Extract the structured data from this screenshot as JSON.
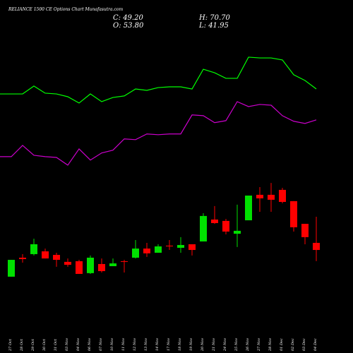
{
  "chart_data": {
    "type": "candlestick",
    "title": "RELIANCE 1500 CE Options Chart Munafasutra.com",
    "ohlc_labels": {
      "close": "C: 49.20",
      "high": "H: 70.70",
      "open": "O: 53.80",
      "low": "L: 41.95"
    },
    "categories": [
      "27 Oct",
      "28 Oct",
      "29 Oct",
      "30 Oct",
      "31 Oct",
      "03 Nov",
      "04 Nov",
      "06 Nov",
      "07 Nov",
      "10 Nov",
      "11 Nov",
      "12 Nov",
      "13 Nov",
      "14 Nov",
      "17 Nov",
      "18 Nov",
      "19 Nov",
      "20 Nov",
      "21 Nov",
      "24 Nov",
      "25 Nov",
      "26 Nov",
      "27 Nov",
      "28 Nov",
      "01 Dec",
      "02 Dec",
      "03 Dec",
      "04 Dec"
    ],
    "open": [
      31.9,
      44.2,
      46.5,
      48.3,
      46.0,
      41.5,
      41.9,
      34.2,
      40.1,
      38.7,
      41.9,
      44.2,
      50.1,
      47.4,
      52.0,
      50.6,
      52.9,
      54.7,
      68.9,
      68.0,
      59.7,
      68.4,
      84.9,
      84.9,
      88.1,
      80.8,
      66.1,
      53.8
    ],
    "high": [
      42.8,
      46.5,
      56.5,
      50.1,
      47.4,
      43.7,
      42.8,
      45.6,
      43.7,
      43.7,
      42.8,
      55.6,
      53.8,
      52.9,
      55.6,
      57.5,
      52.9,
      73.0,
      77.6,
      69.3,
      78.5,
      84.4,
      89.9,
      92.6,
      89.4,
      80.8,
      66.1,
      70.7
    ],
    "low": [
      31.9,
      41.0,
      45.6,
      43.7,
      38.3,
      38.3,
      33.7,
      33.7,
      34.6,
      38.7,
      34.6,
      43.7,
      44.7,
      47.4,
      49.2,
      47.4,
      45.6,
      54.7,
      66.1,
      59.3,
      51.1,
      68.4,
      73.9,
      73.9,
      79.4,
      61.1,
      52.9,
      41.95
    ],
    "close": [
      42.8,
      43.3,
      52.9,
      43.7,
      42.8,
      39.6,
      33.7,
      44.2,
      35.5,
      40.5,
      41.5,
      50.1,
      47.0,
      51.5,
      51.5,
      52.4,
      49.2,
      71.2,
      66.6,
      61.1,
      61.6,
      84.4,
      82.6,
      81.7,
      80.3,
      63.9,
      57.5,
      49.2
    ],
    "up_color": "#00e000",
    "down_color": "#ff0000",
    "lines": [
      {
        "color": "#00ff00",
        "values": [
          150.2,
          150.2,
          155.3,
          150.7,
          150.2,
          148.4,
          144.3,
          150.2,
          145.2,
          147.9,
          148.9,
          153.4,
          152.5,
          154.3,
          154.8,
          154.8,
          153.4,
          166.2,
          163.9,
          160.3,
          160.3,
          174.0,
          173.5,
          173.5,
          172.2,
          162.6,
          158.9,
          153.4
        ]
      },
      {
        "color": "#cc00cc",
        "values": [
          109.6,
          116.9,
          110.5,
          109.6,
          109.1,
          104.1,
          114.6,
          107.4,
          112.0,
          113.8,
          121.1,
          120.6,
          124.3,
          123.8,
          124.3,
          124.3,
          136.6,
          136.1,
          131.6,
          132.9,
          145.2,
          142.0,
          143.4,
          142.9,
          136.1,
          132.5,
          131.1,
          133.4
        ]
      }
    ],
    "ylim": [
      -17.5,
      211
    ]
  }
}
